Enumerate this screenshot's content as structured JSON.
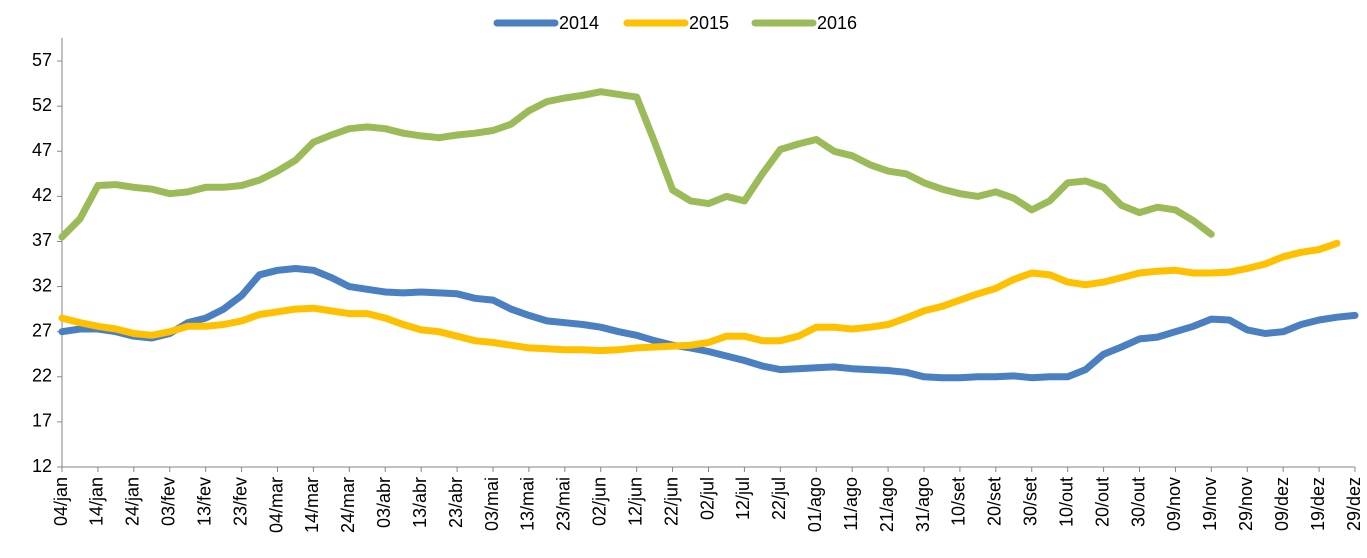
{
  "chart_data": {
    "type": "line",
    "categories": [
      "04/jan",
      null,
      "14/jan",
      null,
      "24/jan",
      null,
      "03/fev",
      null,
      "13/fev",
      null,
      "23/fev",
      null,
      "04/mar",
      null,
      "14/mar",
      null,
      "24/mar",
      null,
      "03/abr",
      null,
      "13/abr",
      null,
      "23/abr",
      null,
      "03/mai",
      null,
      "13/mai",
      null,
      "23/mai",
      null,
      "02/jun",
      null,
      "12/jun",
      null,
      "22/jun",
      null,
      "02/jul",
      null,
      "12/jul",
      null,
      "22/jul",
      null,
      "01/ago",
      null,
      "11/ago",
      null,
      "21/ago",
      null,
      "31/ago",
      null,
      "10/set",
      null,
      "20/set",
      null,
      "30/set",
      null,
      "10/out",
      null,
      "20/out",
      null,
      "30/out",
      null,
      "09/nov",
      null,
      "19/nov",
      null,
      "29/nov",
      null,
      "09/dez",
      null,
      "19/dez",
      null,
      "29/dez"
    ],
    "series": [
      {
        "name": "2014",
        "color": "#4a7fc1",
        "values": [
          27,
          27.3,
          27.3,
          27,
          26.5,
          26.3,
          26.8,
          28,
          28.5,
          29.5,
          31,
          33.3,
          33.8,
          34,
          33.8,
          33,
          32,
          31.7,
          31.4,
          31.3,
          31.4,
          31.3,
          31.2,
          30.7,
          30.5,
          29.5,
          28.8,
          28.2,
          28,
          27.8,
          27.5,
          27,
          26.6,
          26,
          25.5,
          25.2,
          24.8,
          24.3,
          23.8,
          23.2,
          22.8,
          22.9,
          23,
          23.1,
          22.9,
          22.8,
          22.7,
          22.5,
          22,
          21.9,
          21.9,
          22,
          22,
          22.1,
          21.9,
          22,
          22,
          22.8,
          24.5,
          25.3,
          26.2,
          26.4,
          27,
          27.6,
          28.4,
          28.3,
          27.2,
          26.8,
          27,
          27.8,
          28.3,
          28.6,
          28.8
        ]
      },
      {
        "name": "2015",
        "color": "#ffc000",
        "values": [
          28.5,
          28,
          27.6,
          27.3,
          26.8,
          26.6,
          27,
          27.6,
          27.6,
          27.8,
          28.2,
          28.9,
          29.2,
          29.5,
          29.6,
          29.3,
          29,
          29,
          28.5,
          27.8,
          27.2,
          27,
          26.5,
          26,
          25.8,
          25.5,
          25.2,
          25.1,
          25,
          25,
          24.9,
          25,
          25.2,
          25.3,
          25.4,
          25.5,
          25.8,
          26.5,
          26.5,
          26,
          26,
          26.5,
          27.5,
          27.5,
          27.3,
          27.5,
          27.8,
          28.5,
          29.3,
          29.8,
          30.5,
          31.2,
          31.8,
          32.8,
          33.5,
          33.3,
          32.5,
          32.2,
          32.5,
          33,
          33.5,
          33.7,
          33.8,
          33.5,
          33.5,
          33.6,
          34,
          34.5,
          35.3,
          35.8,
          36.1,
          36.8,
          null
        ]
      },
      {
        "name": "2016",
        "color": "#9bbb59",
        "values": [
          37.5,
          39.5,
          43.2,
          43.3,
          43,
          42.8,
          42.3,
          42.5,
          43,
          43,
          43.2,
          43.8,
          44.8,
          46,
          48,
          48.8,
          49.5,
          49.7,
          49.5,
          49,
          48.7,
          48.5,
          48.8,
          49,
          49.3,
          50,
          51.5,
          52.5,
          52.9,
          53.2,
          53.6,
          53.3,
          53,
          48,
          42.7,
          41.5,
          41.2,
          42,
          41.5,
          44.5,
          47.2,
          47.8,
          48.3,
          47,
          46.5,
          45.5,
          44.8,
          44.5,
          43.5,
          42.8,
          42.3,
          42,
          42.5,
          41.8,
          40.5,
          41.5,
          43.5,
          43.7,
          43,
          41,
          40.2,
          40.8,
          40.5,
          39.3,
          37.8,
          null,
          null,
          null,
          null,
          null,
          null,
          null,
          null
        ]
      }
    ],
    "ylim": [
      12,
      59
    ],
    "yticks": [
      12,
      17,
      22,
      27,
      32,
      37,
      42,
      47,
      52,
      57
    ],
    "legend": "top"
  }
}
